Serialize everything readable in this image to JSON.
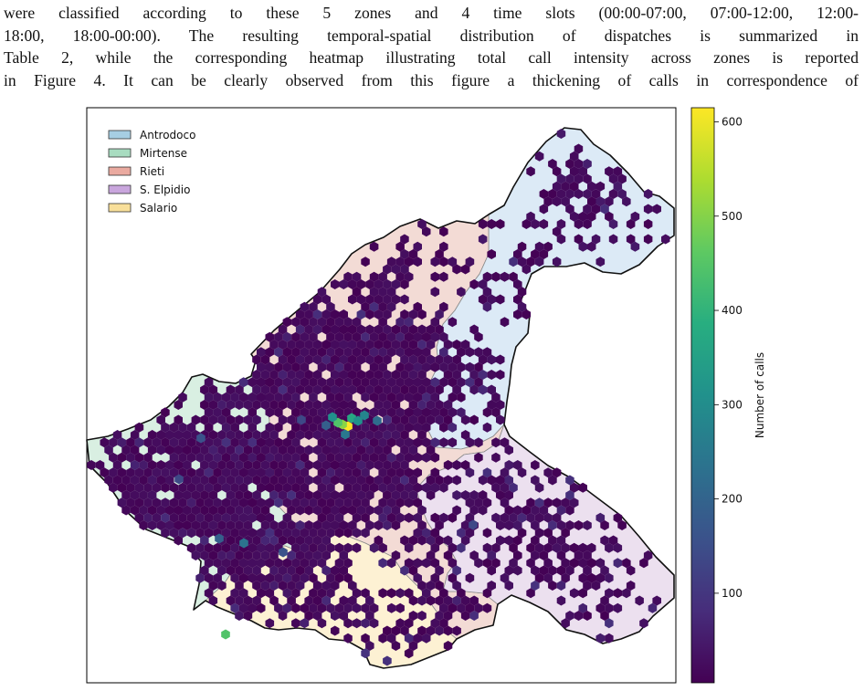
{
  "paragraph_lines": [
    "were classified according to these 5 zones and 4 time slots (00:00-07:00, 07:00-12:00, 12:00-",
    "18:00, 18:00-00:00).  The resulting temporal-spatial distribution of dispatches is summarized in",
    "Table 2, while the corresponding heatmap illustrating total call intensity across zones is reported",
    "in Figure 4.  It can be clearly observed from this figure a thickening of calls in correspondence of"
  ],
  "chart_data": {
    "type": "heatmap",
    "colormap": "viridis",
    "legend": {
      "placement": "top-left",
      "entries": [
        {
          "name": "Antrodoco",
          "color": "#a6cee3"
        },
        {
          "name": "Mirtense",
          "color": "#a8dcc0"
        },
        {
          "name": "Rieti",
          "color": "#eaaaa0"
        },
        {
          "name": "S. Elpidio",
          "color": "#c9a6dd"
        },
        {
          "name": "Salario",
          "color": "#f8df9a"
        }
      ]
    },
    "zone_fill_colors": {
      "Antrodoco": "#dceaf6",
      "Mirtense": "#d9efe2",
      "Rieti": "#f3dbd5",
      "S. Elpidio": "#ece0ef",
      "Salario": "#fdf1d3"
    },
    "colorbar": {
      "label": "Number of calls",
      "range": [
        5,
        615
      ],
      "ticks": [
        100,
        200,
        300,
        400,
        500,
        600
      ]
    }
  }
}
